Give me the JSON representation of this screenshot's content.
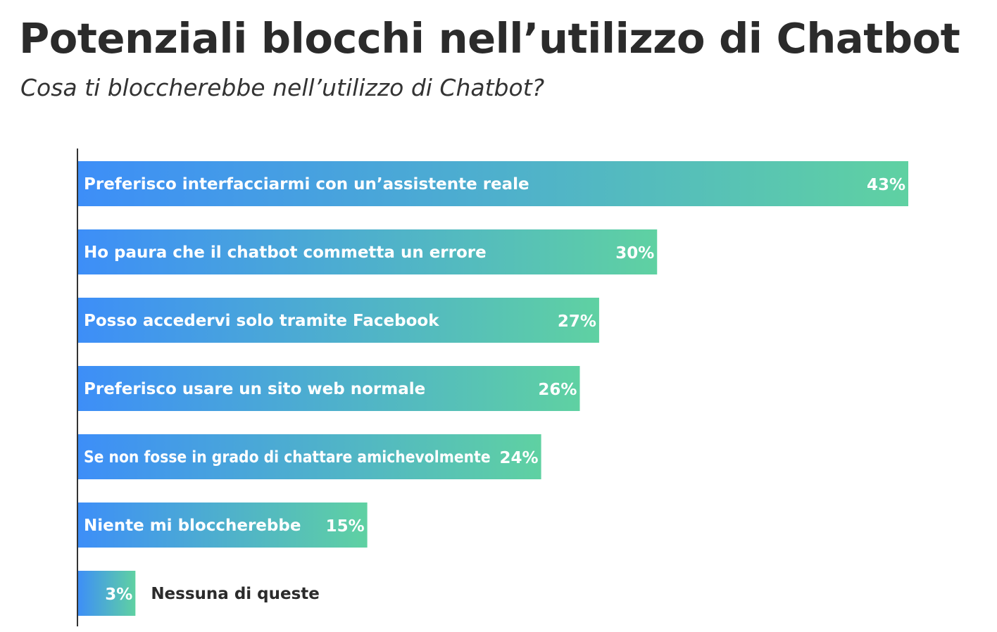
{
  "title": "Potenziali blocchi nell’utilizzo di Chatbot",
  "subtitle": "Cosa ti bloccherebbe nell’utilizzo di Chatbot?",
  "colors": {
    "gradient_start": "#3d8ef8",
    "gradient_end": "#5fd1a2",
    "bar_text": "#ffffff",
    "outside_label": "#2b2b2b",
    "axis": "#333333"
  },
  "chart_data": {
    "type": "bar",
    "orientation": "horizontal",
    "categories": [
      "Preferisco interfacciarmi con un’assistente reale",
      "Ho paura che il chatbot  commetta un errore",
      "Posso accedervi solo tramite Facebook",
      "Preferisco usare un sito web normale",
      "Se non fosse in grado di chattare amichevolmente",
      "Niente mi bloccherebbe",
      "Nessuna di queste"
    ],
    "values": [
      43,
      30,
      27,
      26,
      24,
      15,
      3
    ],
    "value_labels": [
      "43%",
      "30%",
      "27%",
      "26%",
      "24%",
      "15%",
      "3%"
    ],
    "unit": "%",
    "xlim": [
      0,
      43
    ],
    "grid": false,
    "legend": "none"
  }
}
